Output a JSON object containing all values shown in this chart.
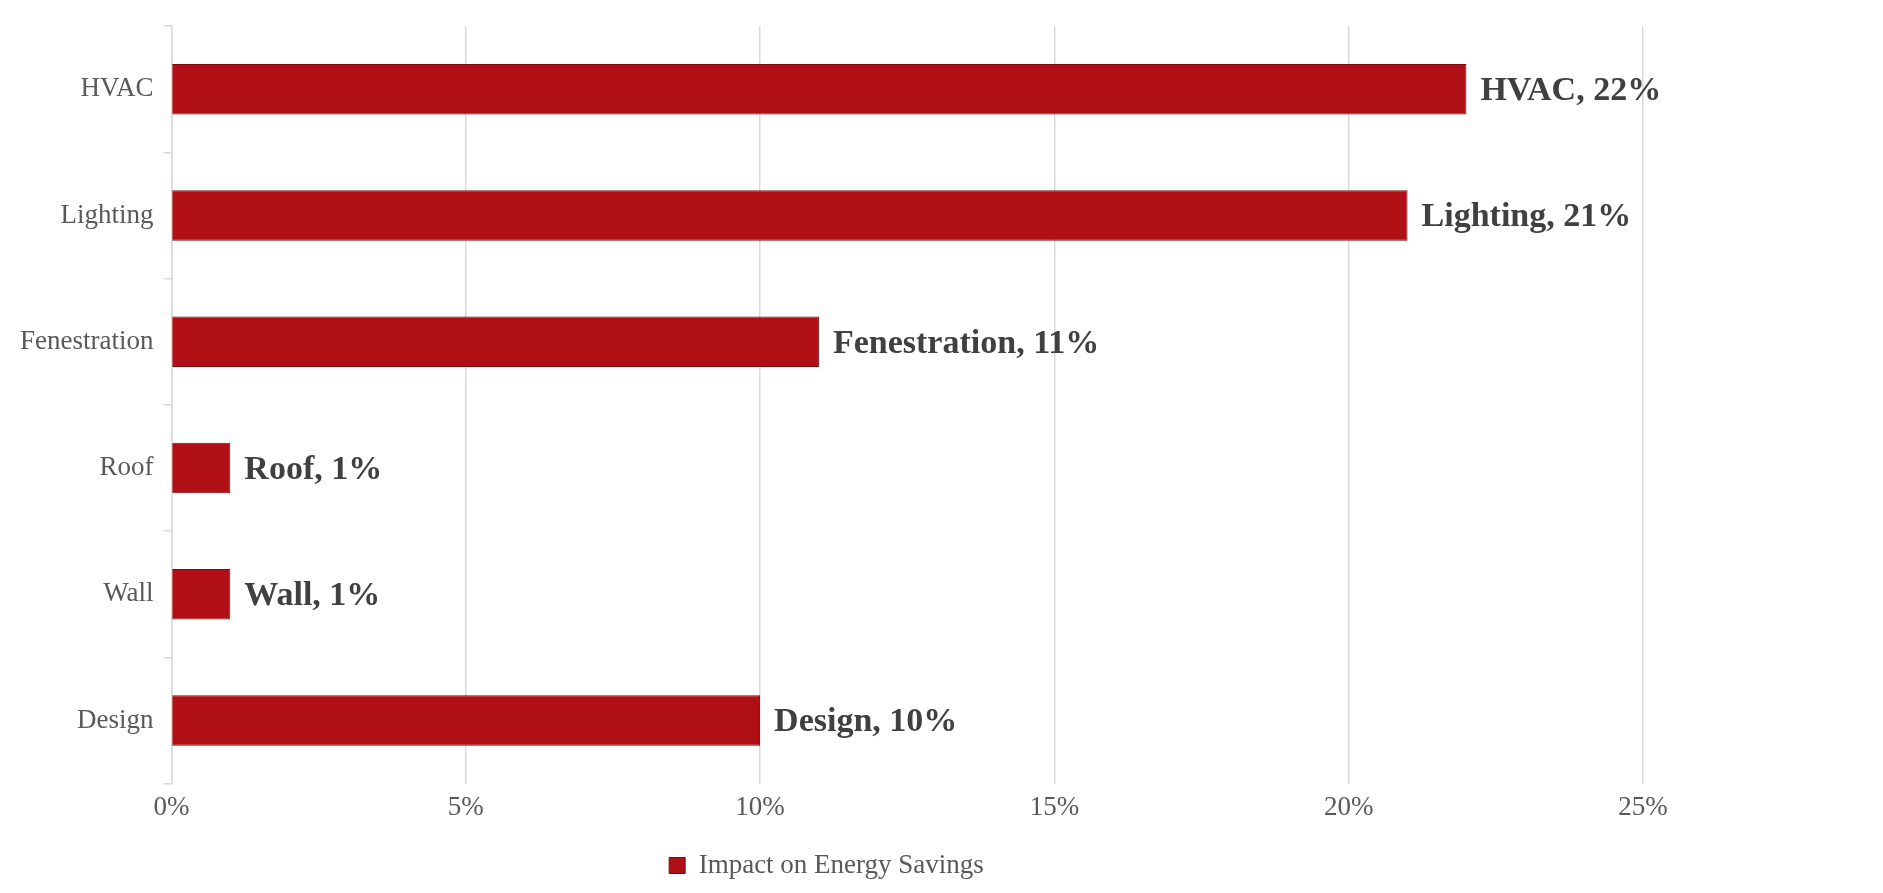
{
  "chart_data": {
    "type": "bar",
    "orientation": "horizontal",
    "categories": [
      "HVAC",
      "Lighting",
      "Fenestration",
      "Roof",
      "Wall",
      "Design"
    ],
    "series": [
      {
        "name": "Impact on Energy Savings",
        "color": "#b01015",
        "values": [
          22,
          21,
          11,
          1,
          1,
          10
        ],
        "value_labels": [
          "HVAC, 22%",
          "Lighting, 21%",
          "Fenestration, 11%",
          "Roof, 1%",
          "Wall, 1%",
          "Design, 10%"
        ]
      }
    ],
    "xlim": [
      0,
      25
    ],
    "xticks": [
      {
        "value": 0,
        "label": "0%"
      },
      {
        "value": 5,
        "label": "5%"
      },
      {
        "value": 10,
        "label": "10%"
      },
      {
        "value": 15,
        "label": "15%"
      },
      {
        "value": 20,
        "label": "20%"
      },
      {
        "value": 25,
        "label": "25%"
      }
    ],
    "grid": "x",
    "legend": "bottom"
  }
}
